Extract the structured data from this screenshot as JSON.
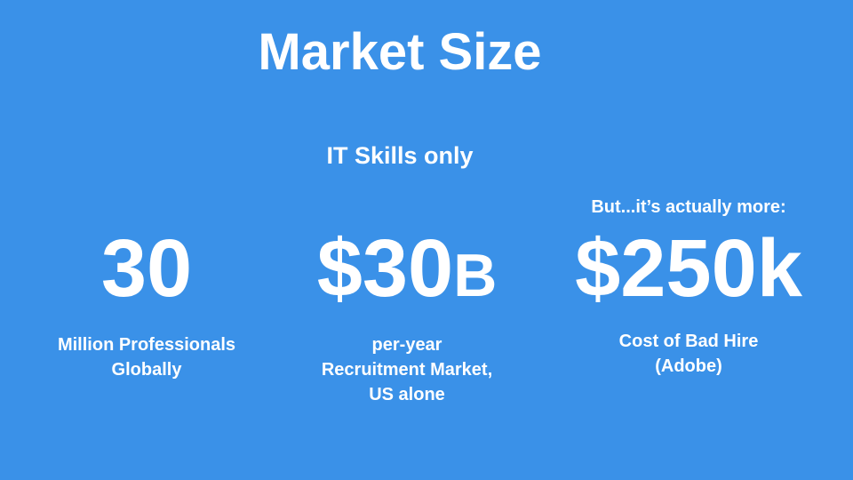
{
  "slide": {
    "title": "Market Size",
    "subtitle": "IT Skills only",
    "note": "But...it’s actually more:",
    "stats": [
      {
        "value": "30",
        "suffix": "",
        "caption_lines": [
          "Million Professionals",
          "Globally"
        ]
      },
      {
        "value": "$30",
        "suffix": "B",
        "caption_lines": [
          "per-year",
          "Recruitment Market,",
          "US alone"
        ]
      },
      {
        "value": "$250k",
        "suffix": "",
        "caption_lines": [
          "Cost of Bad Hire",
          "(Adobe)"
        ]
      }
    ]
  },
  "colors": {
    "background": "#3a91e8",
    "text": "#ffffff"
  }
}
